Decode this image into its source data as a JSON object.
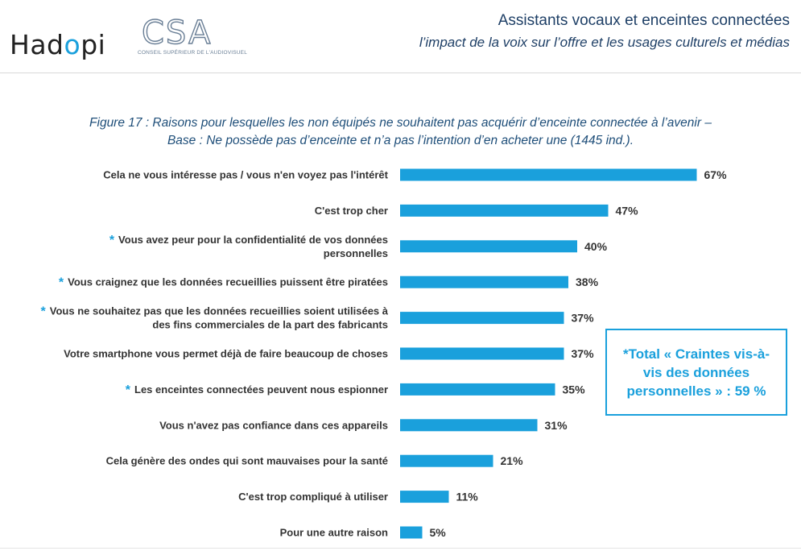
{
  "header": {
    "logo_hadopi": "Hadopi",
    "logo_csa": "CSA",
    "logo_csa_subtitle": "CONSEIL SUPÉRIEUR DE L'AUDIOVISUEL",
    "title": "Assistants vocaux et enceintes connectées",
    "subtitle": "l’impact de la voix sur l’offre et les usages culturels et médias"
  },
  "figure": {
    "caption_line1": "Figure 17 : Raisons pour lesquelles les non équipés ne souhaitent pas acquérir d’enceinte connectée à l’avenir –",
    "caption_line2": "Base : Ne possède pas d’enceinte et n’a pas l’intention d’en acheter une (1445 ind.)."
  },
  "callout": {
    "text": "*Total « Craintes vis-à-vis des données personnelles » : 59 %"
  },
  "colors": {
    "bar": "#1aa0dc",
    "accent": "#1aa0dc",
    "title": "#1e3f66",
    "caption": "#1e4e79"
  },
  "chart_data": {
    "type": "bar",
    "orientation": "horizontal",
    "value_suffix": "%",
    "xlim": [
      0,
      70
    ],
    "grid": false,
    "categories": [
      {
        "lines": [
          "Cela ne vous intéresse pas / vous n'en voyez pas l'intérêt"
        ],
        "asterisk": false
      },
      {
        "lines": [
          "C'est trop cher"
        ],
        "asterisk": false
      },
      {
        "lines": [
          "Vous avez peur pour la confidentialité de vos données",
          "personnelles"
        ],
        "asterisk": true
      },
      {
        "lines": [
          "Vous craignez que les données recueillies puissent être piratées"
        ],
        "asterisk": true
      },
      {
        "lines": [
          "Vous ne souhaitez pas que les données recueillies soient utilisées à",
          "des fins commerciales de la part des fabricants"
        ],
        "asterisk": true
      },
      {
        "lines": [
          "Votre smartphone vous permet déjà de faire beaucoup de choses"
        ],
        "asterisk": false
      },
      {
        "lines": [
          "Les enceintes connectées peuvent nous espionner"
        ],
        "asterisk": true
      },
      {
        "lines": [
          "Vous n'avez pas confiance dans ces appareils"
        ],
        "asterisk": false
      },
      {
        "lines": [
          "Cela génère des ondes qui sont mauvaises pour la santé"
        ],
        "asterisk": false
      },
      {
        "lines": [
          "C'est trop compliqué à utiliser"
        ],
        "asterisk": false
      },
      {
        "lines": [
          "Pour une autre raison"
        ],
        "asterisk": false
      }
    ],
    "values": [
      67,
      47,
      40,
      38,
      37,
      37,
      35,
      31,
      21,
      11,
      5
    ]
  }
}
